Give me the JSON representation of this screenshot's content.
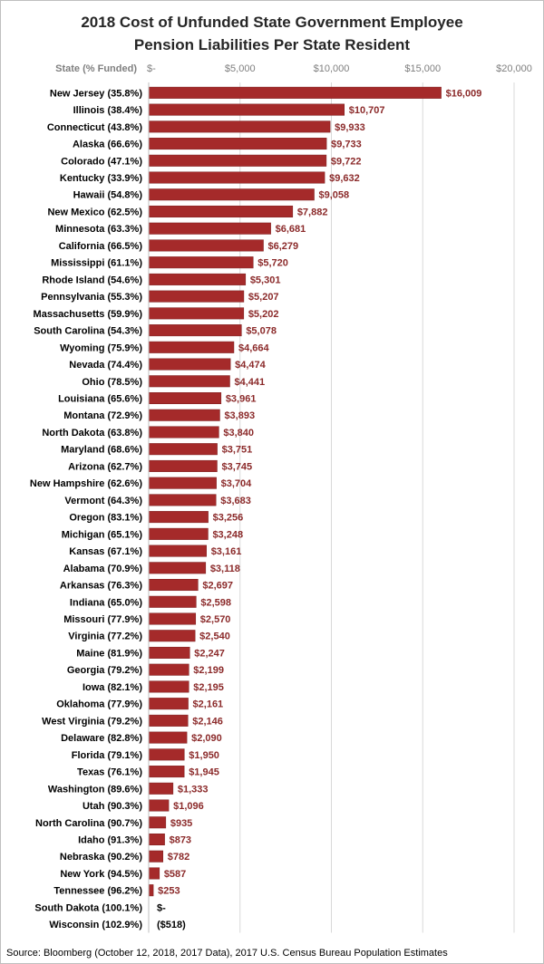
{
  "chart_data": {
    "type": "bar",
    "orientation": "horizontal",
    "title": "2018 Cost of Unfunded State Government Employee Pension Liabilities Per State Resident",
    "title_lines": [
      "2018 Cost of Unfunded State Government Employee",
      "Pension Liabilities Per State Resident"
    ],
    "category_axis_label": "State (% Funded)",
    "x_tick_labels": [
      "$-",
      "$5,000",
      "$10,000",
      "$15,000",
      "$20,000"
    ],
    "x_ticks": [
      0,
      5000,
      10000,
      15000,
      20000
    ],
    "xlim": [
      0,
      20000
    ],
    "grid": true,
    "bar_color": "#a52a2a",
    "label_color": "#8b2a2a",
    "categories": [
      "New Jersey (35.8%)",
      "Illinois (38.4%)",
      "Connecticut (43.8%)",
      "Alaska (66.6%)",
      "Colorado (47.1%)",
      "Kentucky (33.9%)",
      "Hawaii (54.8%)",
      "New Mexico (62.5%)",
      "Minnesota (63.3%)",
      "California (66.5%)",
      "Mississippi (61.1%)",
      "Rhode Island (54.6%)",
      "Pennsylvania (55.3%)",
      "Massachusetts (59.9%)",
      "South Carolina (54.3%)",
      "Wyoming (75.9%)",
      "Nevada (74.4%)",
      "Ohio (78.5%)",
      "Louisiana (65.6%)",
      "Montana (72.9%)",
      "North Dakota (63.8%)",
      "Maryland (68.6%)",
      "Arizona (62.7%)",
      "New Hampshire (62.6%)",
      "Vermont (64.3%)",
      "Oregon (83.1%)",
      "Michigan (65.1%)",
      "Kansas (67.1%)",
      "Alabama (70.9%)",
      "Arkansas (76.3%)",
      "Indiana (65.0%)",
      "Missouri (77.9%)",
      "Virginia (77.2%)",
      "Maine (81.9%)",
      "Georgia (79.2%)",
      "Iowa (82.1%)",
      "Oklahoma (77.9%)",
      "West Virginia (79.2%)",
      "Delaware (82.8%)",
      "Florida (79.1%)",
      "Texas (76.1%)",
      "Washington (89.6%)",
      "Utah (90.3%)",
      "North Carolina (90.7%)",
      "Idaho (91.3%)",
      "Nebraska (90.2%)",
      "New York (94.5%)",
      "Tennessee (96.2%)",
      "South Dakota (100.1%)",
      "Wisconsin (102.9%)"
    ],
    "values": [
      16009,
      10707,
      9933,
      9733,
      9722,
      9632,
      9058,
      7882,
      6681,
      6279,
      5720,
      5301,
      5207,
      5202,
      5078,
      4664,
      4474,
      4441,
      3961,
      3893,
      3840,
      3751,
      3745,
      3704,
      3683,
      3256,
      3248,
      3161,
      3118,
      2697,
      2598,
      2570,
      2540,
      2247,
      2199,
      2195,
      2161,
      2146,
      2090,
      1950,
      1945,
      1333,
      1096,
      935,
      873,
      782,
      587,
      253,
      0,
      -518
    ],
    "value_labels": [
      "$16,009",
      "$10,707",
      "$9,933",
      "$9,733",
      "$9,722",
      "$9,632",
      "$9,058",
      "$7,882",
      "$6,681",
      "$6,279",
      "$5,720",
      "$5,301",
      "$5,207",
      "$5,202",
      "$5,078",
      "$4,664",
      "$4,474",
      "$4,441",
      "$3,961",
      "$3,893",
      "$3,840",
      "$3,751",
      "$3,745",
      "$3,704",
      "$3,683",
      "$3,256",
      "$3,248",
      "$3,161",
      "$3,118",
      "$2,697",
      "$2,598",
      "$2,570",
      "$2,540",
      "$2,247",
      "$2,199",
      "$2,195",
      "$2,161",
      "$2,146",
      "$2,090",
      "$1,950",
      "$1,945",
      "$1,333",
      "$1,096",
      "$935",
      "$873",
      "$782",
      "$587",
      "$253",
      "$-",
      "($518)"
    ],
    "source": "Source: Bloomberg (October 12, 2018,  2017 Data), 2017 U.S. Census Bureau Population Estimates"
  }
}
